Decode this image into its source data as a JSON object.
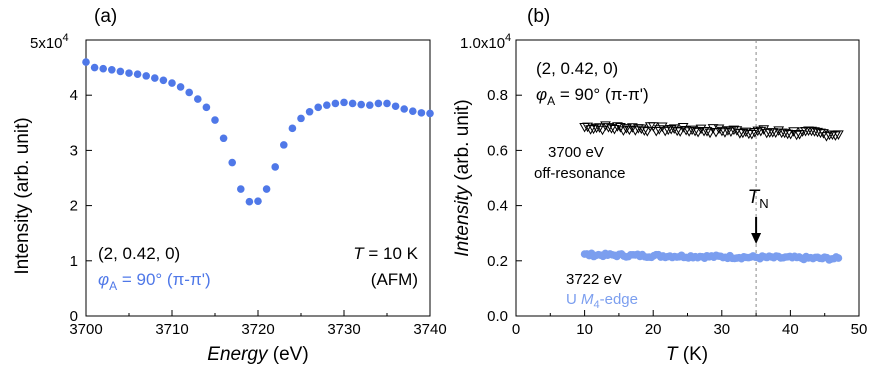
{
  "colors": {
    "blue": "#4F78E8",
    "lightblue": "#7B9EEF",
    "black": "#000000",
    "dashed": "#888888"
  },
  "chart_data": [
    {
      "type": "scatter",
      "panel_label": "(a)",
      "xlabel_italic": "Energy",
      "xlabel_unit": " (eV)",
      "ylabel": "Intensity (arb. unit)",
      "xlim": [
        3700,
        3740
      ],
      "ylim": [
        0,
        5
      ],
      "y_exponent_label_base": "5x10",
      "y_exponent_label_exp": "4",
      "xticks": [
        "3700",
        "3710",
        "3720",
        "3730",
        "3740"
      ],
      "yticks": [
        "0",
        "1",
        "2",
        "3",
        "4"
      ],
      "annotation_left": {
        "line1": "(2, 0.42, 0)",
        "phi": "φ",
        "phi_sub": "A",
        "phi_rest": " = 90° (π-π')"
      },
      "annotation_right": {
        "T": "T",
        "T_rest": " = 10 K",
        "line2": "(AFM)"
      },
      "series": [
        {
          "color": "#4F78E8",
          "x": [
            3700,
            3701,
            3702,
            3703,
            3704,
            3705,
            3706,
            3707,
            3708,
            3709,
            3710,
            3711,
            3712,
            3713,
            3714,
            3715,
            3716,
            3717,
            3718,
            3719,
            3720,
            3721,
            3722,
            3723,
            3724,
            3725,
            3726,
            3727,
            3728,
            3729,
            3730,
            3731,
            3732,
            3733,
            3734,
            3735,
            3736,
            3737,
            3738,
            3739,
            3740
          ],
          "y": [
            4.6,
            4.5,
            4.48,
            4.46,
            4.43,
            4.4,
            4.38,
            4.35,
            4.31,
            4.27,
            4.22,
            4.15,
            4.05,
            3.93,
            3.78,
            3.55,
            3.22,
            2.78,
            2.3,
            2.07,
            2.08,
            2.3,
            2.7,
            3.1,
            3.4,
            3.58,
            3.7,
            3.78,
            3.82,
            3.85,
            3.87,
            3.85,
            3.83,
            3.82,
            3.85,
            3.85,
            3.8,
            3.75,
            3.71,
            3.68,
            3.67
          ]
        }
      ]
    },
    {
      "type": "scatter",
      "panel_label": "(b)",
      "xlabel_italic": "T",
      "xlabel_unit": " (K)",
      "ylabel_italic": "Intensity",
      "ylabel_rest": " (arb. unit)",
      "xlim": [
        0,
        50
      ],
      "ylim": [
        0,
        1.0
      ],
      "y_exponent_label_base": "1.0x10",
      "y_exponent_label_exp": "4",
      "xticks": [
        "0",
        "10",
        "20",
        "30",
        "40",
        "50"
      ],
      "yticks": [
        "0.0",
        "0.2",
        "0.4",
        "0.6",
        "0.8"
      ],
      "annotation_top": {
        "line1": "(2, 0.42, 0)",
        "phi": "φ",
        "phi_sub": "A",
        "phi_rest": " = 90° (π-π')"
      },
      "TN_label": "T",
      "TN_sub": "N",
      "TN_value": 35,
      "series": [
        {
          "label_line1": "3700 eV",
          "label_line2": "off-resonance",
          "color": "#000000",
          "marker": "triangle-down-open",
          "x_start": 10,
          "x_end": 47,
          "y_start": 0.685,
          "y_end": 0.66
        },
        {
          "label_line1": "3722 eV",
          "label_line2_prefix": "U ",
          "label_line2_M": "M",
          "label_line2_sub": "4",
          "label_line2_suffix": "-edge",
          "color": "#7B9EEF",
          "marker": "circle",
          "x_start": 10,
          "x_end": 47,
          "y_start": 0.222,
          "y_end": 0.208
        }
      ]
    }
  ]
}
